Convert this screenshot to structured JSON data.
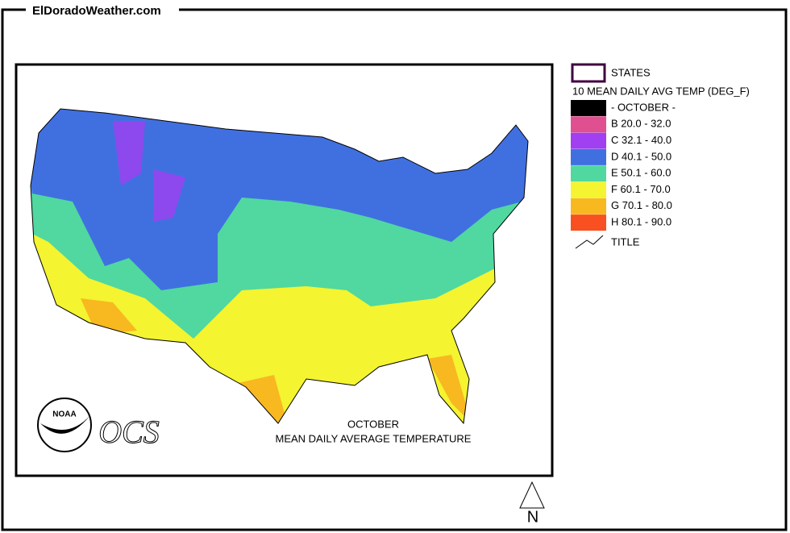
{
  "header": {
    "title": "ElDoradoWeather.com"
  },
  "map": {
    "caption": [
      "OCTOBER",
      "MEAN DAILY AVERAGE TEMPERATURE"
    ],
    "logo_text": "NOAA",
    "ocs_text": "OCS"
  },
  "legend": {
    "states_label": "STATES",
    "title": "10 MEAN DAILY AVG TEMP (DEG_F)",
    "items": [
      {
        "label": "- OCTOBER -",
        "color": "#000000"
      },
      {
        "label": "B 20.0 - 32.0",
        "color": "#e05090"
      },
      {
        "label": "C 32.1 - 40.0",
        "color": "#a040f0"
      },
      {
        "label": "D 40.1 - 50.0",
        "color": "#4070e0"
      },
      {
        "label": "E 50.1 - 60.0",
        "color": "#50d8a0"
      },
      {
        "label": "F 60.1 - 70.0",
        "color": "#f4f430"
      },
      {
        "label": "G 70.1 - 80.0",
        "color": "#f8b820"
      },
      {
        "label": "H 80.1 - 90.0",
        "color": "#f85020"
      }
    ],
    "title_label": "TITLE"
  },
  "compass": "N"
}
